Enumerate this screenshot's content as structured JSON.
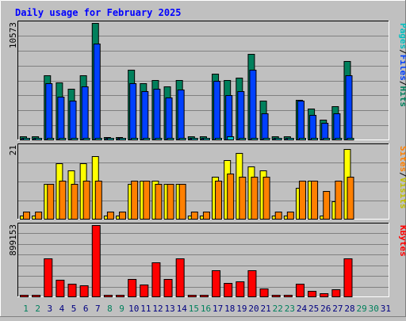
{
  "chart_data": {
    "type": "bar",
    "title": "Daily usage for February 2025",
    "categories": [
      "1",
      "2",
      "3",
      "4",
      "5",
      "6",
      "7",
      "8",
      "9",
      "10",
      "11",
      "12",
      "13",
      "14",
      "15",
      "16",
      "17",
      "18",
      "19",
      "20",
      "21",
      "22",
      "23",
      "24",
      "25",
      "26",
      "27",
      "28",
      "29",
      "30",
      "31"
    ],
    "weekend_days": [
      "1",
      "2",
      "8",
      "9",
      "15",
      "16",
      "22",
      "23",
      "29",
      "30"
    ],
    "panels": [
      {
        "id": "hits_files_pages",
        "ymax_label": "10573",
        "ymax": 10573,
        "right_labels": [
          "Pages",
          "/",
          "Files",
          "/",
          "Hits"
        ],
        "series": [
          {
            "name": "Hits",
            "color": "#00805c",
            "values": [
              300,
              300,
              5850,
              5200,
              4600,
              5850,
              10573,
              200,
              200,
              6300,
              5100,
              5400,
              4800,
              5400,
              300,
              300,
              5950,
              5400,
              5600,
              7800,
              3500,
              300,
              300,
              3600,
              2800,
              1800,
              3000,
              7100,
              0,
              0,
              0
            ]
          },
          {
            "name": "Files",
            "color": "#0040ff",
            "values": [
              150,
              150,
              5100,
              3900,
              3500,
              4800,
              8700,
              100,
              100,
              5100,
              4400,
              4600,
              3800,
              4500,
              150,
              150,
              5300,
              4000,
              4400,
              6300,
              2400,
              150,
              150,
              3500,
              2200,
              1500,
              2400,
              5800,
              0,
              0,
              0
            ]
          },
          {
            "name": "Pages",
            "color": "#00c0c0",
            "values": [
              50,
              50,
              120,
              100,
              90,
              110,
              150,
              30,
              30,
              110,
              90,
              100,
              80,
              100,
              40,
              40,
              110,
              300,
              100,
              130,
              60,
              40,
              40,
              80,
              60,
              40,
              60,
              120,
              0,
              0,
              0
            ]
          }
        ]
      },
      {
        "id": "visits_sites",
        "ymax_label": "21",
        "ymax": 21,
        "right_labels": [
          "Sites",
          "/",
          "Visits"
        ],
        "series": [
          {
            "name": "Visits",
            "color": "#ffff00",
            "values": [
              1,
              1,
              10,
              16,
              14,
              16,
              18,
              1,
              1,
              10,
              11,
              11,
              10,
              10,
              1,
              1,
              12,
              17,
              19,
              15,
              14,
              1,
              1,
              9,
              11,
              1,
              5,
              20,
              0,
              0,
              0
            ]
          },
          {
            "name": "Sites",
            "color": "#ff8000",
            "values": [
              2,
              2,
              10,
              11,
              10,
              11,
              11,
              2,
              2,
              11,
              11,
              10,
              10,
              10,
              2,
              2,
              11,
              13,
              12,
              12,
              12,
              2,
              2,
              11,
              11,
              8,
              11,
              12,
              0,
              0,
              0
            ]
          }
        ]
      },
      {
        "id": "kbytes",
        "ymax_label": "899153",
        "ymax": 899153,
        "right_labels": [
          "KBytes"
        ],
        "series": [
          {
            "name": "KBytes",
            "color": "#ff0000",
            "values": [
              10000,
              10000,
              480000,
              210000,
              160000,
              140000,
              899153,
              10000,
              10000,
              220000,
              150000,
              430000,
              220000,
              480000,
              10000,
              10000,
              330000,
              170000,
              190000,
              330000,
              100000,
              10000,
              10000,
              160000,
              70000,
              40000,
              90000,
              480000,
              0,
              0,
              0
            ]
          }
        ]
      }
    ],
    "colors": {
      "background": "#c0c0c0",
      "title": "#0000ff",
      "weekday_label": "#000080",
      "weekend_label": "#00805c",
      "gridline": "#808080",
      "kbytes_label": "#ff0000",
      "pages_label": "#00c0c0",
      "files_label": "#0040ff",
      "hits_label": "#00805c",
      "sites_label": "#ff8000",
      "visits_label": "#c0c000"
    }
  }
}
